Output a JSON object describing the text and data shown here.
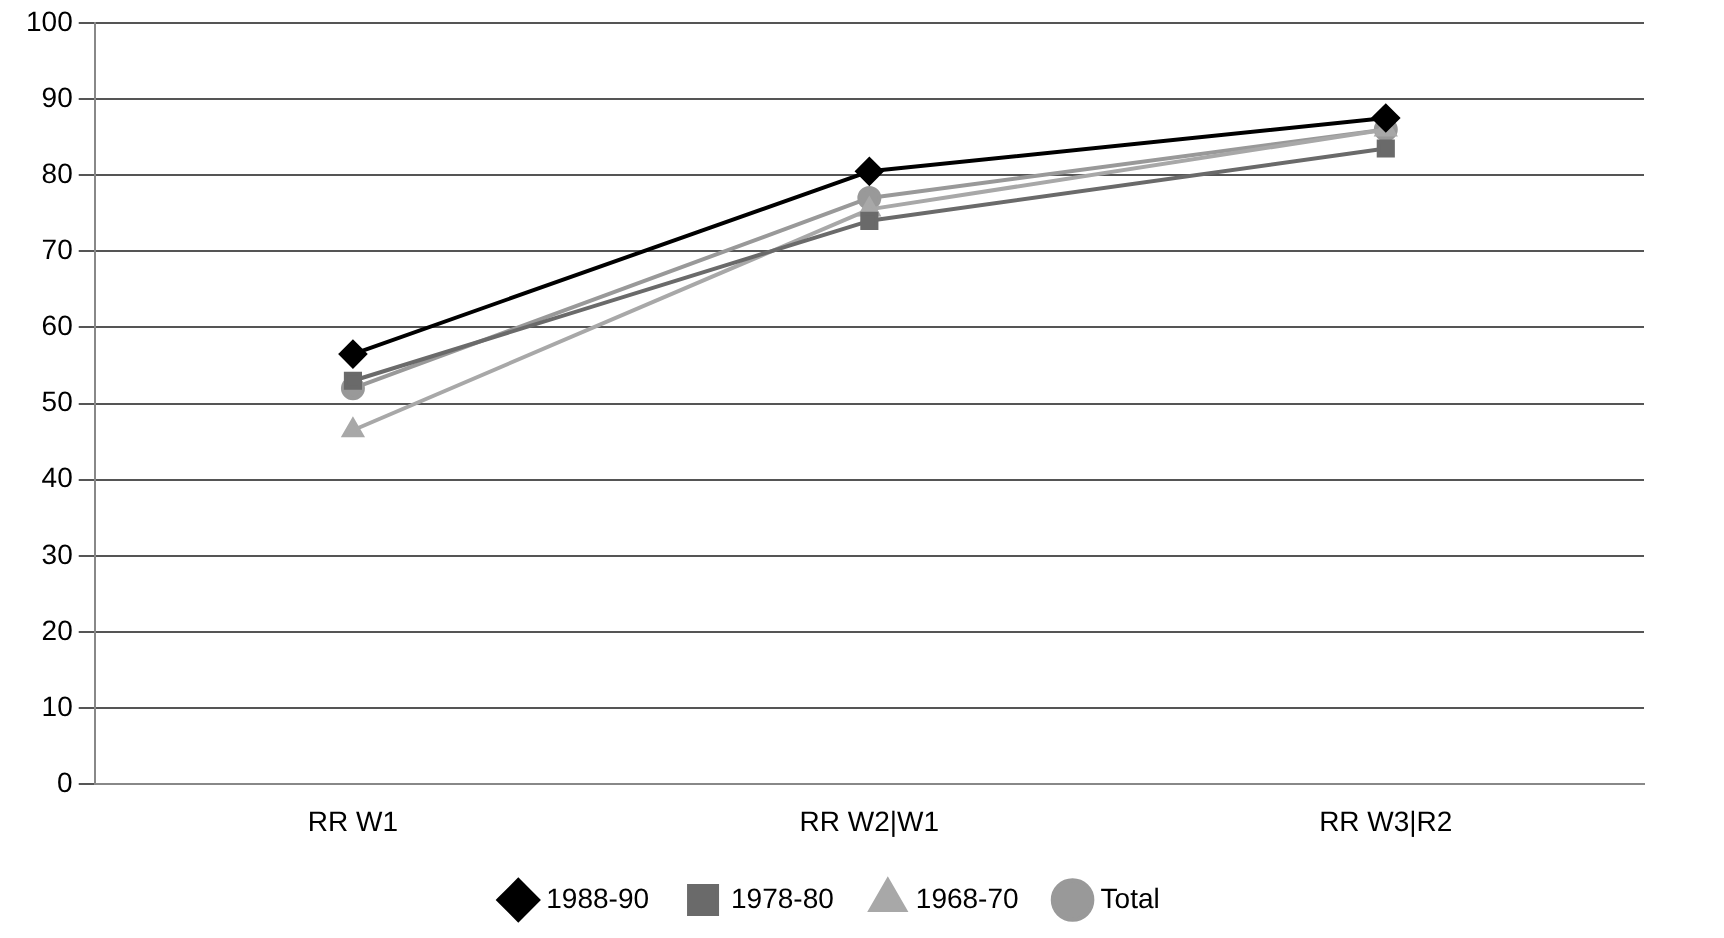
{
  "chart_data": {
    "type": "line",
    "categories": [
      "RR W1",
      "RR W2|W1",
      "RR W3|R2"
    ],
    "series": [
      {
        "name": "1988-90",
        "color": "#000000",
        "marker": "diamond",
        "values": [
          56.5,
          80.5,
          87.5
        ]
      },
      {
        "name": "1978-80",
        "color": "#6a6a6a",
        "marker": "square",
        "values": [
          53,
          74,
          83.5
        ]
      },
      {
        "name": "1968-70",
        "color": "#a8a8a8",
        "marker": "triangle",
        "values": [
          46.5,
          75.5,
          86
        ]
      },
      {
        "name": "Total",
        "color": "#999999",
        "marker": "circle",
        "values": [
          52,
          77,
          86
        ]
      }
    ],
    "ylim": [
      0,
      100
    ],
    "yticks": [
      0,
      10,
      20,
      30,
      40,
      50,
      60,
      70,
      80,
      90,
      100
    ],
    "grid": "y",
    "legend": "bottom"
  }
}
